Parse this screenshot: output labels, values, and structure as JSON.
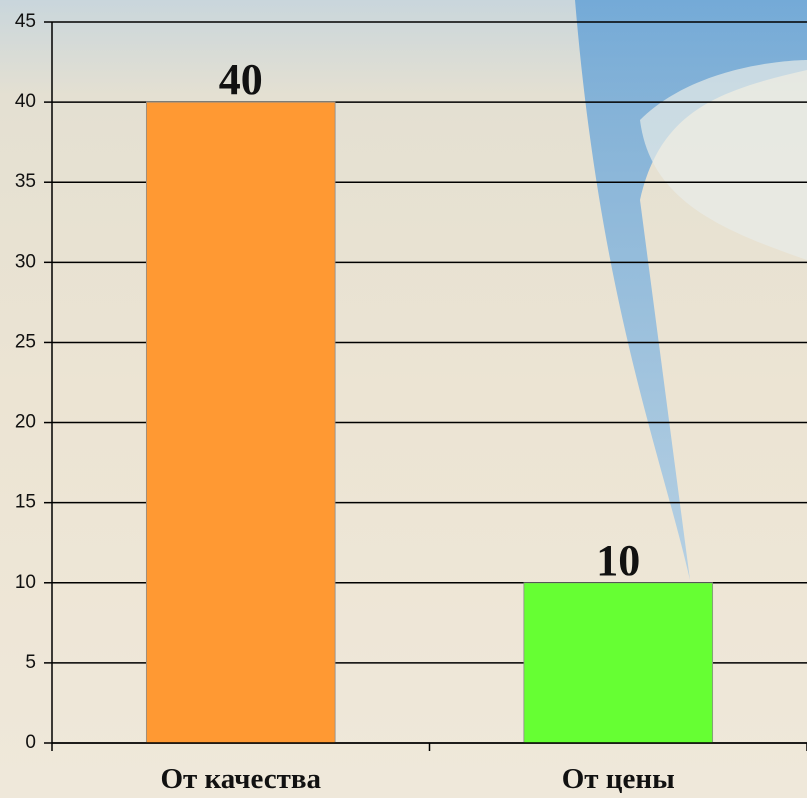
{
  "chart_data": {
    "type": "bar",
    "categories": [
      "От качества",
      "От цены"
    ],
    "values": [
      40,
      10
    ],
    "colors": [
      "#ff9933",
      "#66ff33"
    ],
    "ylim": [
      0,
      45
    ],
    "yticks": [
      0,
      5,
      10,
      15,
      20,
      25,
      30,
      35,
      40,
      45
    ],
    "grid": true,
    "data_labels": true
  }
}
